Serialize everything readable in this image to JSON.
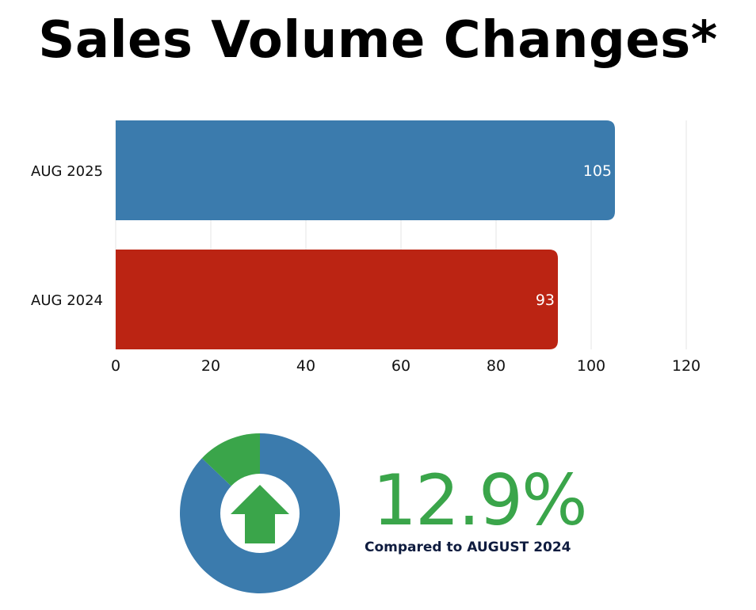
{
  "title": "Sales Volume Changes*",
  "chart_data": [
    {
      "type": "bar",
      "orientation": "horizontal",
      "categories": [
        "AUG 2025",
        "AUG 2024"
      ],
      "values": [
        105,
        93
      ],
      "data_labels": [
        "105",
        "93"
      ],
      "bar_colors": [
        "#3b7bad",
        "#bb2413"
      ],
      "xlim": [
        0,
        120
      ],
      "xticks": [
        "0",
        "20",
        "40",
        "60",
        "80",
        "100",
        "120"
      ],
      "xtick_values": [
        0,
        20,
        40,
        60,
        80,
        100,
        120
      ],
      "grid": true,
      "title": "",
      "xlabel": "",
      "ylabel": ""
    },
    {
      "type": "pie",
      "style": "donut",
      "slices": [
        {
          "value": 87.1,
          "color": "#3b7bad"
        },
        {
          "value": 12.9,
          "color": "#3aa54a"
        }
      ],
      "center_icon": "up-arrow-icon",
      "center_icon_color": "#3aa54a"
    }
  ],
  "summary": {
    "percent_change": "12.9%",
    "comparison_text": "Compared to AUGUST 2024",
    "direction": "up"
  }
}
